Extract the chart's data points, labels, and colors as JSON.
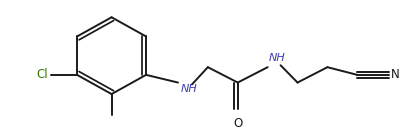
{
  "bg_color": "#ffffff",
  "bond_color": "#1a1a1a",
  "bond_width": 1.4,
  "label_Cl": {
    "text": "Cl",
    "color": "#3a7a00"
  },
  "label_NH_left": {
    "text": "NH",
    "color": "#4040b0"
  },
  "label_O": {
    "text": "O",
    "color": "#1a1a1a"
  },
  "label_NH_right": {
    "text": "NH",
    "color": "#4040b0"
  },
  "label_N": {
    "text": "N",
    "color": "#1a1a1a"
  },
  "figsize": [
    4.02,
    1.32
  ],
  "dpi": 100,
  "xlim": [
    0,
    402
  ],
  "ylim": [
    0,
    132
  ]
}
